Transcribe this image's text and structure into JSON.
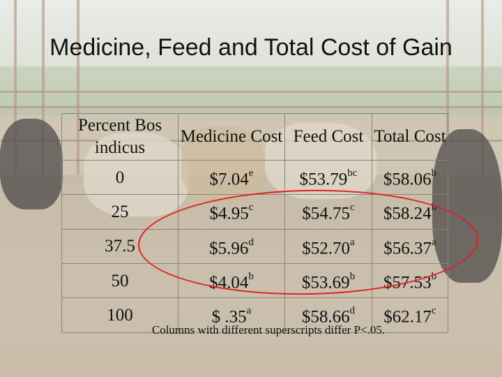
{
  "title": "Medicine, Feed and Total Cost of Gain",
  "table": {
    "headers": [
      "Percent Bos indicus",
      "Medicine Cost",
      "Feed Cost",
      "Total Cost"
    ],
    "rows": [
      {
        "bos": "0",
        "med": "$7.04",
        "med_sup": "e",
        "feed": "$53.79",
        "feed_sup": "bc",
        "total": "$58.06",
        "total_sup": "b"
      },
      {
        "bos": "25",
        "med": "$4.95",
        "med_sup": "c",
        "feed": "$54.75",
        "feed_sup": "c",
        "total": "$58.24",
        "total_sup": "b"
      },
      {
        "bos": "37.5",
        "med": "$5.96",
        "med_sup": "d",
        "feed": "$52.70",
        "feed_sup": "a",
        "total": "$56.37",
        "total_sup": "a"
      },
      {
        "bos": "50",
        "med": "$4.04",
        "med_sup": "b",
        "feed": "$53.69",
        "feed_sup": "b",
        "total": "$57.53",
        "total_sup": "b"
      },
      {
        "bos": "100",
        "med": "$ .35",
        "med_sup": "a",
        "feed": "$58.66",
        "feed_sup": "d",
        "total": "$62.17",
        "total_sup": "c"
      }
    ]
  },
  "footnote": "Columns with different superscripts differ P<.05.",
  "colors": {
    "highlight_ellipse": "#e02020",
    "text": "#111111"
  }
}
